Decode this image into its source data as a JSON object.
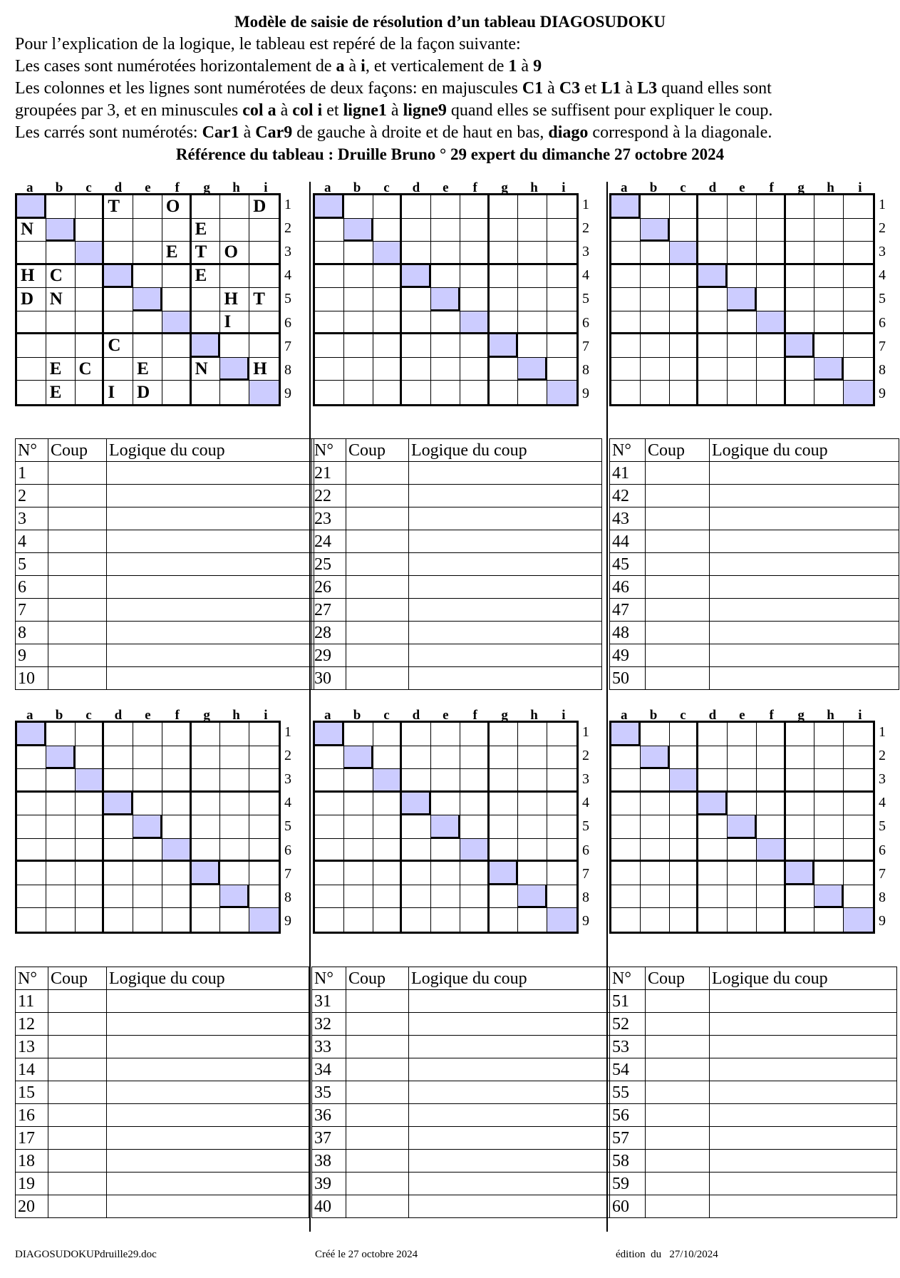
{
  "header": {
    "title": "Modèle de saisie de résolution d’un tableau DIAGOSUDOKU",
    "line1": "Pour l’explication de la logique, le tableau est repéré de la façon suivante:",
    "line2": [
      "Les cases sont numérotées horizontalement de ",
      "a",
      " à ",
      "i",
      ", et verticalement de ",
      "1",
      " à ",
      "9"
    ],
    "line3": [
      "Les colonnes et les lignes sont numérotées de deux façons: en majuscules ",
      "C1",
      " à ",
      "C3",
      " et ",
      "L1",
      " à ",
      "L3",
      " quand elles sont"
    ],
    "line4": [
      "groupées par 3, et en minuscules ",
      "col a",
      " à ",
      "col i",
      " et ",
      "ligne1",
      " à ",
      "ligne9",
      " quand elles se suffisent pour expliquer le coup."
    ],
    "line5": [
      "Les carrés sont numérotés: ",
      "Car1",
      " à ",
      "Car9",
      " de gauche à droite et de haut en bas, ",
      "diago",
      " correspond à la diagonale."
    ],
    "reference": "Référence du tableau : Druille Bruno ° 29 expert du dimanche 27 octobre 2024"
  },
  "grid_labels": {
    "columns": [
      "a",
      "b",
      "c",
      "d",
      "e",
      "f",
      "g",
      "h",
      "i"
    ],
    "rows": [
      "1",
      "2",
      "3",
      "4",
      "5",
      "6",
      "7",
      "8",
      "9"
    ]
  },
  "colors": {
    "diagonal": "#ccccff"
  },
  "puzzle": [
    [
      "",
      "",
      "",
      "T",
      "",
      "O",
      "",
      "",
      "D"
    ],
    [
      "N",
      "",
      "",
      "",
      "",
      "",
      "E",
      "",
      ""
    ],
    [
      "",
      "",
      "",
      "",
      "",
      "E",
      "T",
      "O",
      ""
    ],
    [
      "H",
      "C",
      "",
      "",
      "",
      "",
      "E",
      "",
      ""
    ],
    [
      "D",
      "N",
      "",
      "",
      "",
      "",
      "",
      "H",
      "T"
    ],
    [
      "",
      "",
      "",
      "",
      "",
      "",
      "",
      "I",
      ""
    ],
    [
      "",
      "",
      "",
      "C",
      "",
      "",
      "",
      "",
      ""
    ],
    [
      "",
      "E",
      "C",
      "",
      "E",
      "",
      "N",
      "",
      "H"
    ],
    [
      "",
      "E",
      "",
      "I",
      "D",
      "",
      "",
      "",
      ""
    ]
  ],
  "moves_table": {
    "headers": [
      "N°",
      "Coup",
      "Logique du coup"
    ],
    "blocks": [
      [
        "1",
        "2",
        "3",
        "4",
        "5",
        "6",
        "7",
        "8",
        "9",
        "10"
      ],
      [
        "21",
        "22",
        "23",
        "24",
        "25",
        "26",
        "27",
        "28",
        "29",
        "30"
      ],
      [
        "41",
        "42",
        "43",
        "44",
        "45",
        "46",
        "47",
        "48",
        "49",
        "50"
      ],
      [
        "11",
        "12",
        "13",
        "14",
        "15",
        "16",
        "17",
        "18",
        "19",
        "20"
      ],
      [
        "31",
        "32",
        "33",
        "34",
        "35",
        "36",
        "37",
        "38",
        "39",
        "40"
      ],
      [
        "51",
        "52",
        "53",
        "54",
        "55",
        "56",
        "57",
        "58",
        "59",
        "60"
      ]
    ]
  },
  "footer": {
    "filename": "DIAGOSUDOKUPdruille29.doc",
    "created": "Créé le 27 octobre 2024",
    "edition": "édition  du   27/10/2024"
  }
}
